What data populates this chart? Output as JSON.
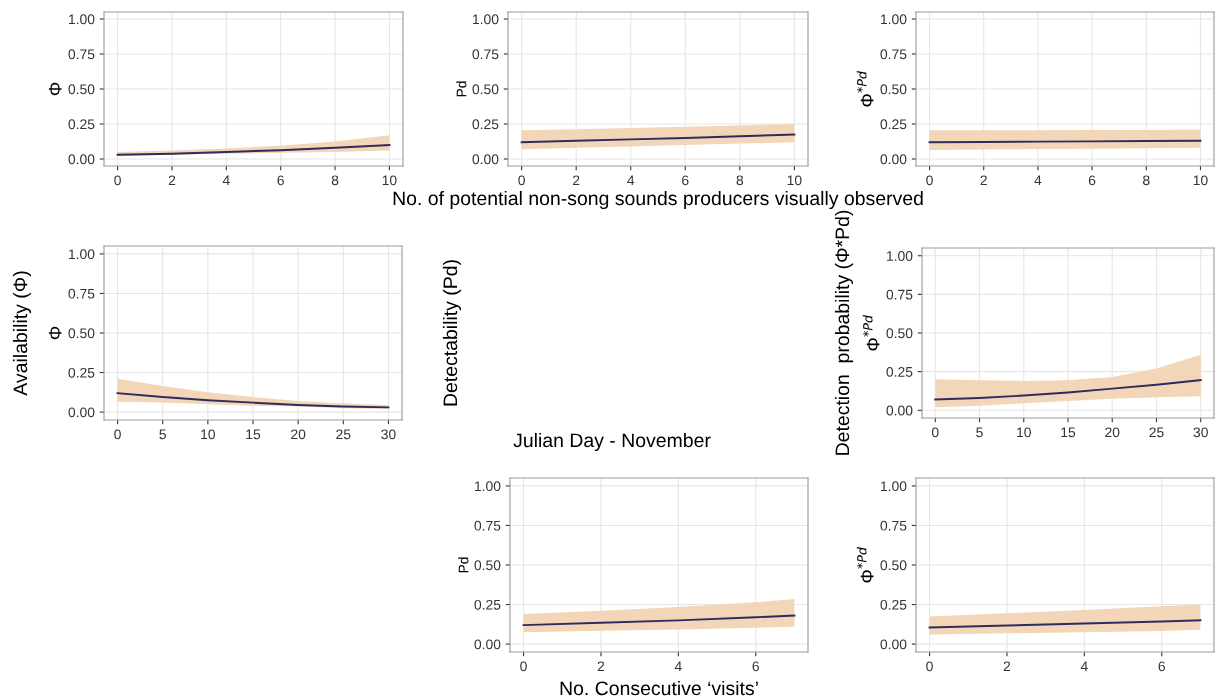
{
  "chart_data": [
    {
      "type": "line",
      "ylabel": "Φ",
      "x": [
        0,
        2,
        4,
        6,
        8,
        10
      ],
      "xlim": [
        -0.5,
        10.5
      ],
      "ylim": [
        -0.05,
        1.05
      ],
      "xticks": [
        0,
        2,
        4,
        6,
        8,
        10
      ],
      "yticks": [
        {
          "value": 0,
          "label": "0.00"
        },
        {
          "value": 0.25,
          "label": "0.25"
        },
        {
          "value": 0.5,
          "label": "0.50"
        },
        {
          "value": 0.75,
          "label": "0.75"
        },
        {
          "value": 1,
          "label": "1.00"
        }
      ],
      "grid": true,
      "series": [
        {
          "color": "#2e2b5f",
          "values": [
            0.03,
            0.038,
            0.05,
            0.063,
            0.08,
            0.1
          ],
          "lower": [
            0.02,
            0.03,
            0.038,
            0.045,
            0.05,
            0.06
          ],
          "upper": [
            0.05,
            0.06,
            0.075,
            0.095,
            0.125,
            0.17
          ]
        }
      ]
    },
    {
      "type": "line",
      "ylabel": "Pd",
      "xlabel": "No. of potential non-song sounds producers visually observed",
      "x": [
        0,
        2,
        4,
        6,
        8,
        10
      ],
      "xlim": [
        -0.5,
        10.5
      ],
      "ylim": [
        -0.05,
        1.05
      ],
      "xticks": [
        0,
        2,
        4,
        6,
        8,
        10
      ],
      "yticks": [
        {
          "value": 0,
          "label": "0.00"
        },
        {
          "value": 0.25,
          "label": "0.25"
        },
        {
          "value": 0.5,
          "label": "0.50"
        },
        {
          "value": 0.75,
          "label": "0.75"
        },
        {
          "value": 1,
          "label": "1.00"
        }
      ],
      "grid": true,
      "series": [
        {
          "color": "#2e2b5f",
          "values": [
            0.12,
            0.13,
            0.14,
            0.15,
            0.162,
            0.175
          ],
          "lower": [
            0.07,
            0.08,
            0.09,
            0.1,
            0.11,
            0.12
          ],
          "upper": [
            0.205,
            0.213,
            0.222,
            0.231,
            0.24,
            0.25
          ]
        }
      ]
    },
    {
      "type": "line",
      "ylabel": "Φ$^{*Pd}$",
      "x": [
        0,
        2,
        4,
        6,
        8,
        10
      ],
      "xlim": [
        -0.5,
        10.5
      ],
      "ylim": [
        -0.05,
        1.05
      ],
      "xticks": [
        0,
        2,
        4,
        6,
        8,
        10
      ],
      "yticks": [
        {
          "value": 0,
          "label": "0.00"
        },
        {
          "value": 0.25,
          "label": "0.25"
        },
        {
          "value": 0.5,
          "label": "0.50"
        },
        {
          "value": 0.75,
          "label": "0.75"
        },
        {
          "value": 1,
          "label": "1.00"
        }
      ],
      "grid": true,
      "series": [
        {
          "color": "#2e2b5f",
          "values": [
            0.12,
            0.122,
            0.124,
            0.126,
            0.128,
            0.13
          ],
          "lower": [
            0.065,
            0.068,
            0.071,
            0.074,
            0.077,
            0.08
          ],
          "upper": [
            0.205,
            0.205,
            0.206,
            0.207,
            0.208,
            0.21
          ]
        }
      ]
    },
    {
      "type": "line",
      "ylabel": "Φ",
      "annotations": [
        "Availability (Φ)",
        "Julian Day - November",
        "Detectability (Pd)"
      ],
      "x": [
        0,
        5,
        10,
        15,
        20,
        25,
        30
      ],
      "xlim": [
        -1.5,
        31.5
      ],
      "ylim": [
        -0.05,
        1.05
      ],
      "xticks": [
        0,
        5,
        10,
        15,
        20,
        25,
        30
      ],
      "yticks": [
        {
          "value": 0,
          "label": "0.00"
        },
        {
          "value": 0.25,
          "label": "0.25"
        },
        {
          "value": 0.5,
          "label": "0.50"
        },
        {
          "value": 0.75,
          "label": "0.75"
        },
        {
          "value": 1,
          "label": "1.00"
        }
      ],
      "grid": true,
      "series": [
        {
          "color": "#2e2b5f",
          "values": [
            0.12,
            0.095,
            0.075,
            0.06,
            0.045,
            0.035,
            0.03
          ],
          "lower": [
            0.065,
            0.06,
            0.05,
            0.04,
            0.035,
            0.025,
            0.02
          ],
          "upper": [
            0.21,
            0.165,
            0.125,
            0.095,
            0.07,
            0.055,
            0.045
          ]
        }
      ]
    },
    {
      "type": "line",
      "ylabel": "Φ$^{*Pd}$",
      "annotations": [
        "Detection  probability (Φ*Pd)"
      ],
      "x": [
        0,
        5,
        10,
        15,
        20,
        25,
        30
      ],
      "xlim": [
        -1.5,
        31.5
      ],
      "ylim": [
        -0.05,
        1.05
      ],
      "xticks": [
        0,
        5,
        10,
        15,
        20,
        25,
        30
      ],
      "yticks": [
        {
          "value": 0,
          "label": "0.00"
        },
        {
          "value": 0.25,
          "label": "0.25"
        },
        {
          "value": 0.5,
          "label": "0.50"
        },
        {
          "value": 0.75,
          "label": "0.75"
        },
        {
          "value": 1,
          "label": "1.00"
        }
      ],
      "grid": true,
      "series": [
        {
          "color": "#2e2b5f",
          "values": [
            0.07,
            0.08,
            0.095,
            0.115,
            0.14,
            0.165,
            0.195
          ],
          "lower": [
            0.02,
            0.03,
            0.045,
            0.06,
            0.075,
            0.085,
            0.09
          ],
          "upper": [
            0.2,
            0.195,
            0.19,
            0.195,
            0.215,
            0.27,
            0.36
          ]
        }
      ]
    },
    {
      "type": "line",
      "ylabel": "Pd",
      "xlabel": "No. Consecutive ‘visits’",
      "x": [
        0,
        2,
        4,
        6,
        7
      ],
      "xlim": [
        -0.35,
        7.35
      ],
      "ylim": [
        -0.05,
        1.05
      ],
      "xticks": [
        0,
        2,
        4,
        6
      ],
      "yticks": [
        {
          "value": 0,
          "label": "0.00"
        },
        {
          "value": 0.25,
          "label": "0.25"
        },
        {
          "value": 0.5,
          "label": "0.50"
        },
        {
          "value": 0.75,
          "label": "0.75"
        },
        {
          "value": 1,
          "label": "1.00"
        }
      ],
      "grid": true,
      "series": [
        {
          "color": "#2e2b5f",
          "values": [
            0.12,
            0.135,
            0.15,
            0.17,
            0.18
          ],
          "lower": [
            0.075,
            0.085,
            0.093,
            0.103,
            0.11
          ],
          "upper": [
            0.19,
            0.21,
            0.235,
            0.265,
            0.285
          ]
        }
      ]
    },
    {
      "type": "line",
      "ylabel": "Φ$^{*Pd}$",
      "x": [
        0,
        2,
        4,
        6,
        7
      ],
      "xlim": [
        -0.35,
        7.35
      ],
      "ylim": [
        -0.05,
        1.05
      ],
      "xticks": [
        0,
        2,
        4,
        6
      ],
      "yticks": [
        {
          "value": 0,
          "label": "0.00"
        },
        {
          "value": 0.25,
          "label": "0.25"
        },
        {
          "value": 0.5,
          "label": "0.50"
        },
        {
          "value": 0.75,
          "label": "0.75"
        },
        {
          "value": 1,
          "label": "1.00"
        }
      ],
      "grid": true,
      "series": [
        {
          "color": "#2e2b5f",
          "values": [
            0.105,
            0.117,
            0.13,
            0.143,
            0.15
          ],
          "lower": [
            0.06,
            0.068,
            0.075,
            0.083,
            0.09
          ],
          "upper": [
            0.175,
            0.195,
            0.215,
            0.24,
            0.25
          ]
        }
      ]
    }
  ]
}
